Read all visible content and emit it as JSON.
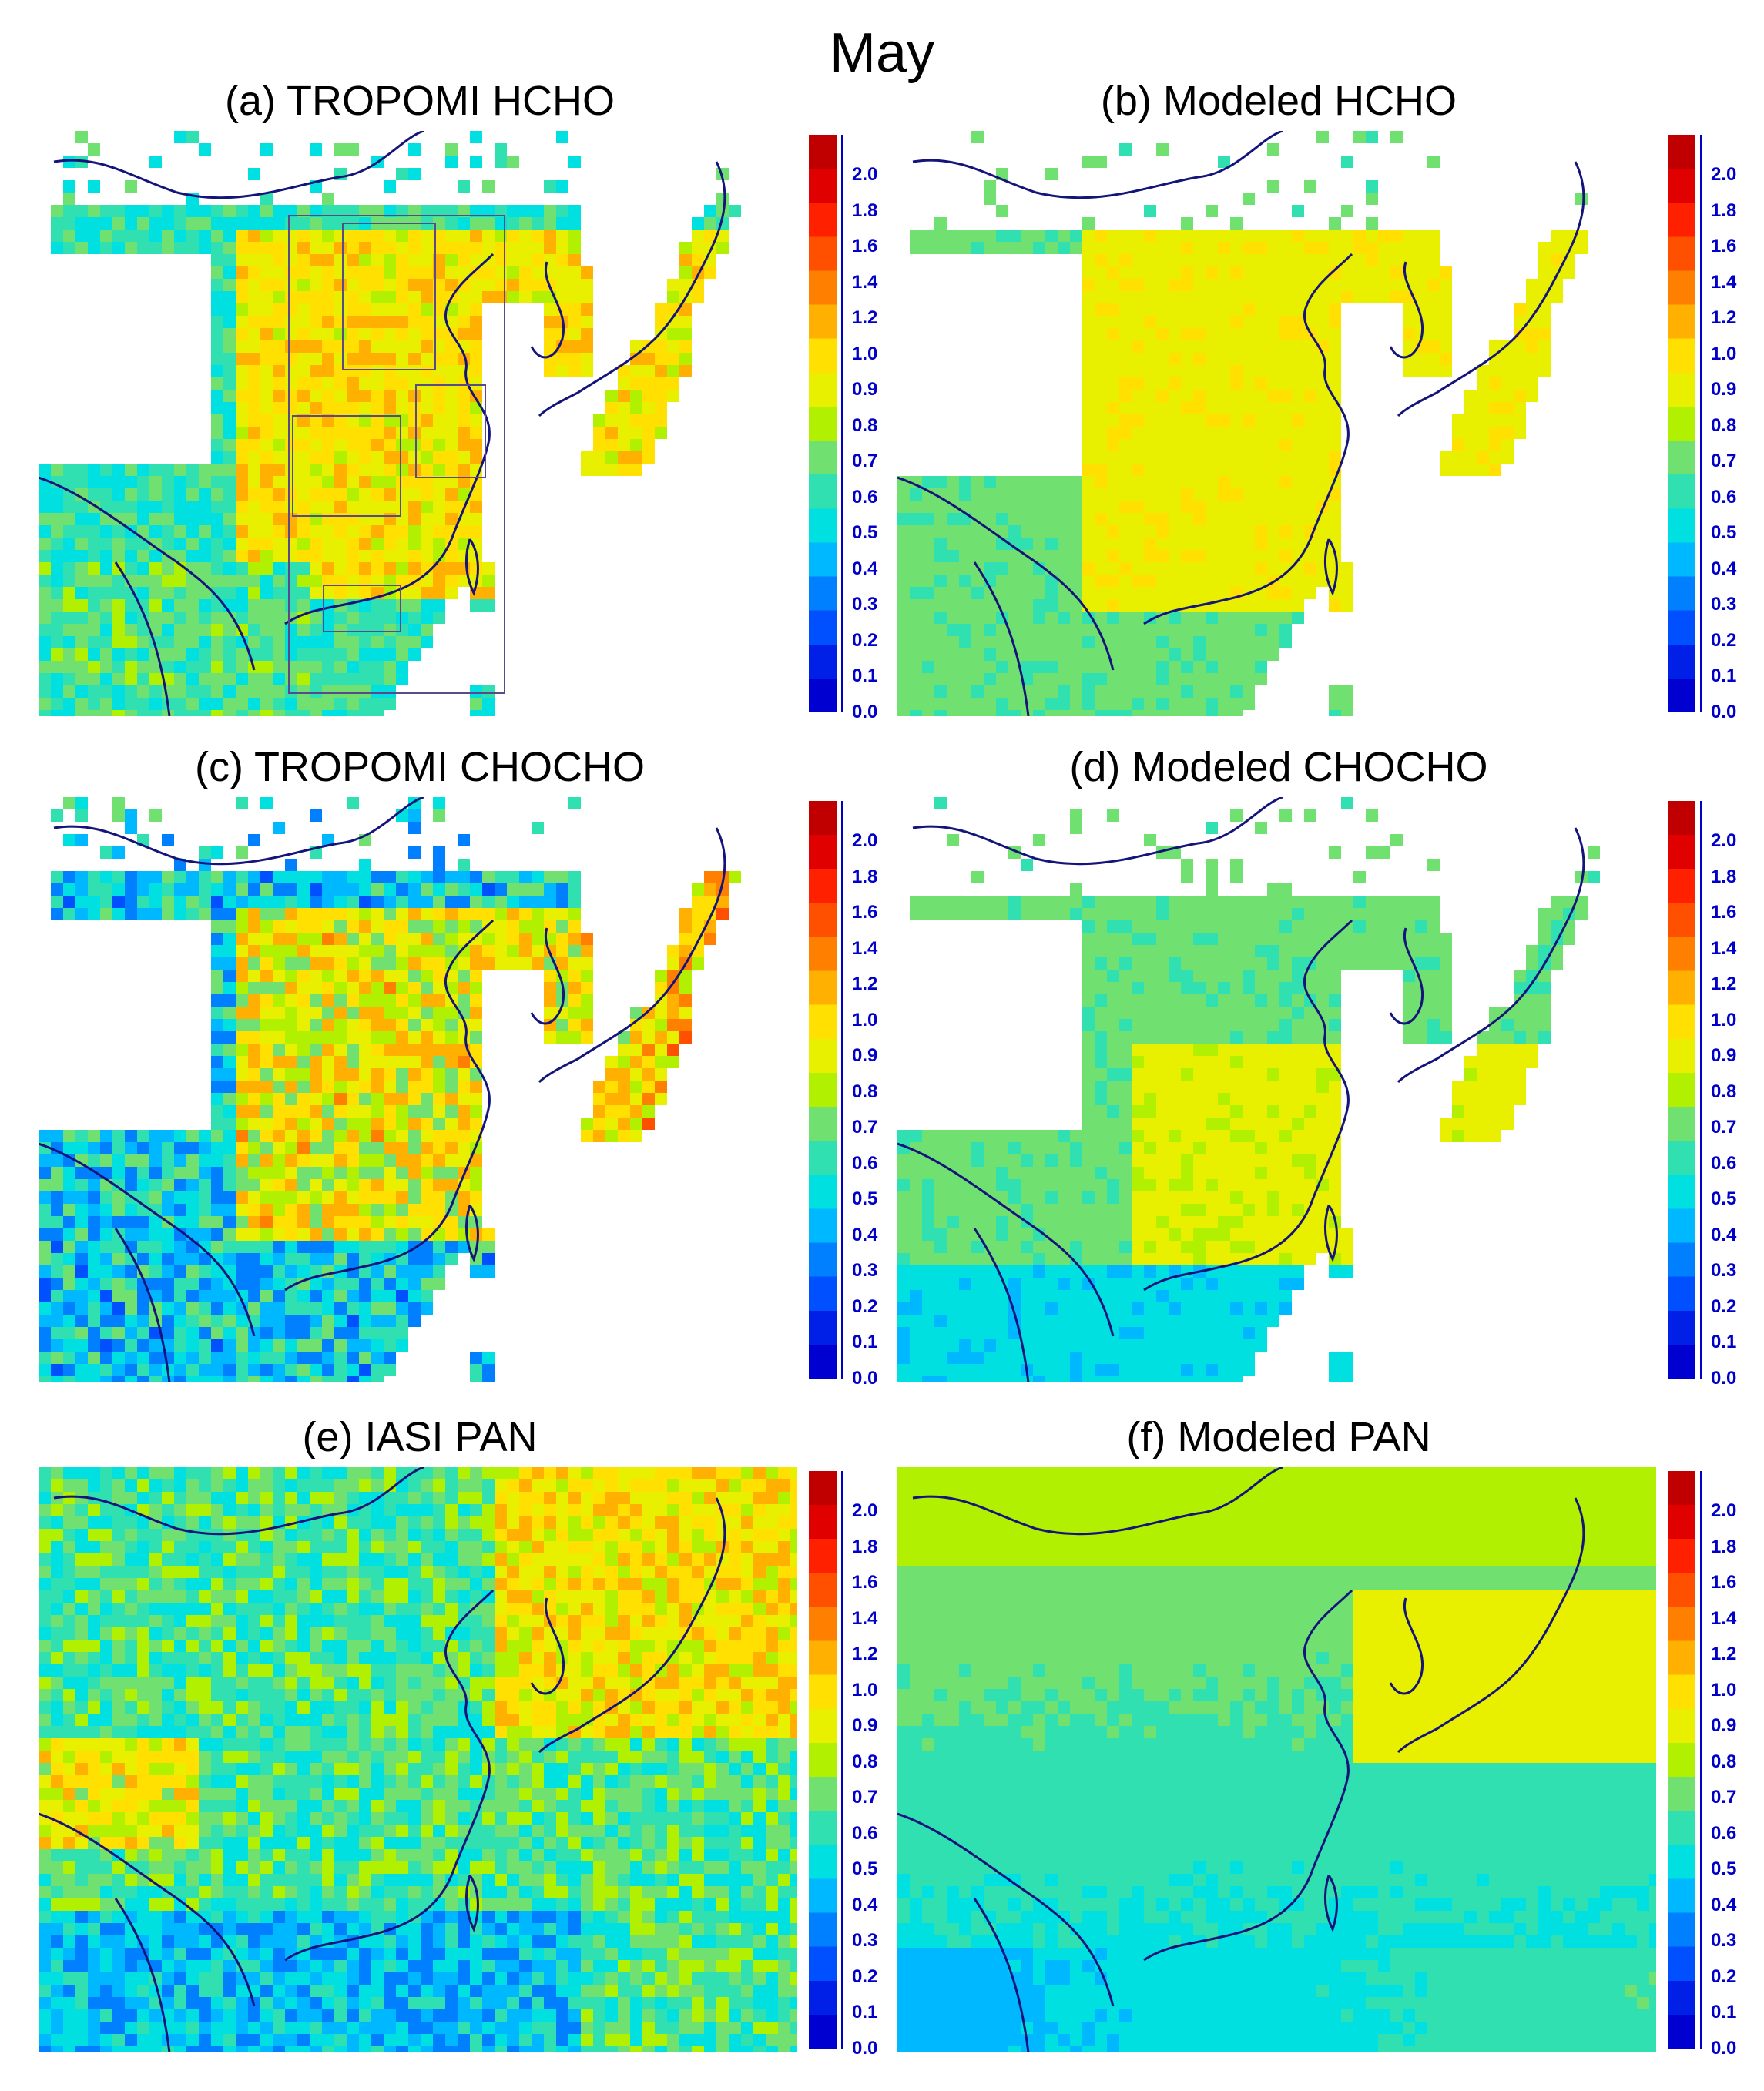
{
  "figure_title": "May",
  "panels": [
    {
      "id": "a",
      "title": "(a) TROPOMI HCHO",
      "pattern": "hcho_obs"
    },
    {
      "id": "b",
      "title": "(b) Modeled HCHO",
      "pattern": "hcho_mod"
    },
    {
      "id": "c",
      "title": "(c) TROPOMI CHOCHO",
      "pattern": "chocho_obs"
    },
    {
      "id": "d",
      "title": "(d) Modeled CHOCHO",
      "pattern": "chocho_mod"
    },
    {
      "id": "e",
      "title": "(e) IASI PAN",
      "pattern": "pan_obs"
    },
    {
      "id": "f",
      "title": "(f) Modeled PAN",
      "pattern": "pan_mod"
    }
  ],
  "colorbar": {
    "ticks": [
      "2.0",
      "1.8",
      "1.6",
      "1.4",
      "1.2",
      "1.0",
      "0.9",
      "0.8",
      "0.7",
      "0.6",
      "0.5",
      "0.4",
      "0.3",
      "0.2",
      "0.1",
      "0.0"
    ],
    "colors_top_to_bottom": [
      "#c00000",
      "#e00000",
      "#ff2000",
      "#ff5000",
      "#ff8000",
      "#ffb000",
      "#ffe000",
      "#e8f000",
      "#b0f000",
      "#70e070",
      "#30e0b0",
      "#00e0e0",
      "#00b8ff",
      "#0080ff",
      "#0050ff",
      "#0020e8",
      "#0000d0"
    ]
  },
  "map_colors": {
    "coastline": "#14147a",
    "box_outline": "#5a4a8a"
  }
}
